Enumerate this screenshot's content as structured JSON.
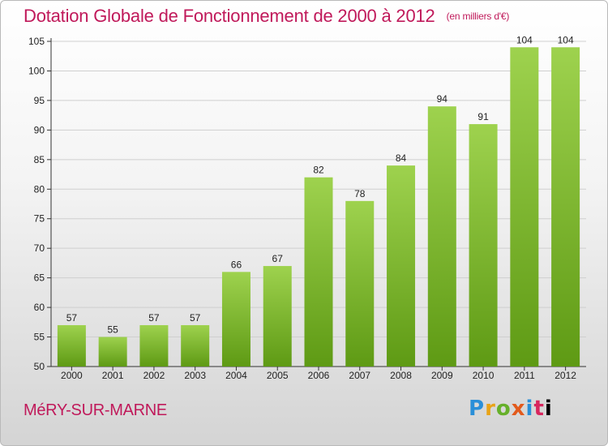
{
  "chart_data": {
    "type": "bar",
    "title": "Dotation Globale de Fonctionnement de 2000 à 2012",
    "subtitle": "(en milliers d'€)",
    "categories": [
      "2000",
      "2001",
      "2002",
      "2003",
      "2004",
      "2005",
      "2006",
      "2007",
      "2008",
      "2009",
      "2010",
      "2011",
      "2012"
    ],
    "values": [
      57,
      55,
      57,
      57,
      66,
      67,
      82,
      78,
      84,
      94,
      91,
      104,
      104
    ],
    "value_labels": [
      "57",
      "55",
      "57",
      "57",
      "66",
      "67",
      "82",
      "78",
      "84",
      "94",
      "91",
      "104",
      "104"
    ],
    "ylim": [
      50,
      105
    ],
    "yticks": [
      50,
      55,
      60,
      65,
      70,
      75,
      80,
      85,
      90,
      95,
      100,
      105
    ],
    "grid": true,
    "bar_color_top": "#9ed24e",
    "bar_color_bottom": "#5e9a14"
  },
  "commune": "MéRY-SUR-MARNE",
  "brand": {
    "letters": [
      "P",
      "r",
      "o",
      "x",
      "i",
      "t",
      "i"
    ]
  }
}
